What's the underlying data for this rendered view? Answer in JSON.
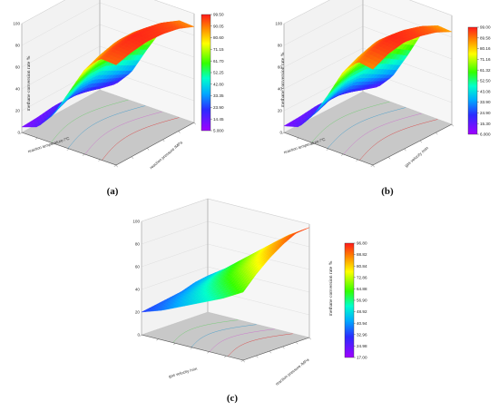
{
  "chart_data": [
    {
      "id": "a",
      "type": "surface3d",
      "panel_label": "(a)",
      "zlabel": "methane conversion rate %",
      "zlim": [
        0,
        100
      ],
      "z_ticks": [
        "0",
        "20",
        "40",
        "60",
        "80",
        "100"
      ],
      "x_axis_label": "reaction temperature /°C",
      "y_axis_label": "reaction pressure /MPa",
      "x_ticks": [
        "",
        "",
        "",
        "",
        "",
        "",
        ""
      ],
      "y_ticks": [
        "",
        "",
        "",
        "",
        "",
        ""
      ],
      "colorbar": [
        "99.50",
        "90.05",
        "80.60",
        "71.15",
        "61.70",
        "52.25",
        "42.80",
        "33.35",
        "23.90",
        "14.45",
        "5.000"
      ],
      "surface_z": [
        [
          92,
          96,
          98,
          97,
          94,
          88
        ],
        [
          93,
          97,
          99,
          98,
          95,
          89
        ],
        [
          78,
          84,
          88,
          88,
          84,
          76
        ],
        [
          52,
          60,
          66,
          66,
          60,
          52
        ],
        [
          26,
          34,
          42,
          42,
          34,
          26
        ],
        [
          10,
          14,
          20,
          20,
          14,
          10
        ],
        [
          5,
          6,
          8,
          8,
          6,
          5
        ]
      ]
    },
    {
      "id": "b",
      "type": "surface3d",
      "panel_label": "(b)",
      "zlabel": "methane conversion rate %",
      "zlim": [
        0,
        100
      ],
      "z_ticks": [
        "0",
        "20",
        "40",
        "60",
        "80",
        "100"
      ],
      "x_axis_label": "reaction temperature /°C",
      "y_axis_label": "gas velocity /min",
      "x_ticks": [
        "",
        "",
        "",
        "",
        "",
        "",
        ""
      ],
      "y_ticks": [
        "",
        "",
        "",
        "",
        "",
        ""
      ],
      "colorbar": [
        "99.00",
        "89.58",
        "80.16",
        "71.16",
        "61.32",
        "52.50",
        "43.08",
        "33.90",
        "24.90",
        "15.30",
        "6.000"
      ],
      "surface_z": [
        [
          88,
          95,
          98,
          96,
          92,
          85
        ],
        [
          90,
          96,
          99,
          97,
          93,
          86
        ],
        [
          76,
          83,
          88,
          87,
          82,
          74
        ],
        [
          50,
          58,
          64,
          64,
          58,
          48
        ],
        [
          26,
          34,
          40,
          40,
          32,
          24
        ],
        [
          10,
          14,
          20,
          20,
          14,
          9
        ],
        [
          6,
          7,
          9,
          9,
          7,
          6
        ]
      ]
    },
    {
      "id": "c",
      "type": "surface3d",
      "panel_label": "(c)",
      "zlabel": "methane conversion rate %",
      "zlim": [
        0,
        100
      ],
      "z_ticks": [
        "0",
        "20",
        "40",
        "60",
        "80",
        "100"
      ],
      "x_axis_label": "gas velocity /min",
      "y_axis_label": "reaction pressure /MPa",
      "x_ticks": [
        "",
        "",
        "",
        "",
        "",
        ""
      ],
      "y_ticks": [
        "",
        "",
        "",
        "",
        "",
        ""
      ],
      "colorbar": [
        "96.80",
        "88.82",
        "80.84",
        "72.86",
        "64.88",
        "56.90",
        "48.92",
        "40.94",
        "32.96",
        "24.98",
        "17.00"
      ],
      "surface_z": [
        [
          60,
          72,
          82,
          90,
          96,
          97
        ],
        [
          50,
          60,
          70,
          78,
          84,
          86
        ],
        [
          42,
          50,
          58,
          64,
          70,
          72
        ],
        [
          34,
          40,
          46,
          52,
          56,
          58
        ],
        [
          26,
          30,
          34,
          38,
          42,
          44
        ],
        [
          20,
          22,
          24,
          26,
          30,
          32
        ]
      ]
    }
  ]
}
